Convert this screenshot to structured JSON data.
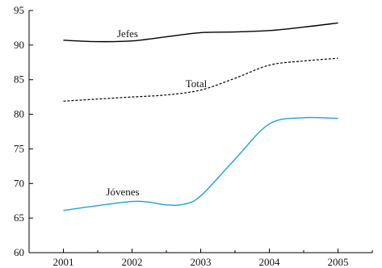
{
  "chart_data": {
    "type": "line",
    "title": "",
    "xlabel": "",
    "ylabel": "",
    "x": [
      2001,
      2002,
      2003,
      2004,
      2005
    ],
    "x_tick_labels": [
      "2001",
      "2002",
      "2003",
      "2004",
      "2005"
    ],
    "ylim": [
      60,
      95
    ],
    "y_ticks": [
      60,
      65,
      70,
      75,
      80,
      85,
      90,
      95
    ],
    "y_tick_labels": [
      "60",
      "65",
      "70",
      "75",
      "80",
      "85",
      "90",
      "95"
    ],
    "grid": false,
    "series": [
      {
        "name": "Jefes",
        "color": "#000000",
        "style": "solid",
        "x": [
          2001,
          2001.5,
          2002,
          2002.5,
          2003,
          2003.5,
          2004,
          2004.5,
          2005
        ],
        "values": [
          90.7,
          90.5,
          90.6,
          91.2,
          91.8,
          91.9,
          92.1,
          92.6,
          93.2
        ]
      },
      {
        "name": "Total",
        "color": "#000000",
        "style": "dashed",
        "x": [
          2001,
          2001.5,
          2002,
          2002.5,
          2003,
          2003.5,
          2004,
          2004.5,
          2005
        ],
        "values": [
          81.9,
          82.2,
          82.5,
          82.8,
          83.5,
          85.2,
          87.1,
          87.7,
          88.1
        ]
      },
      {
        "name": "Jóvenes",
        "color": "#1aa3d9",
        "style": "solid",
        "x": [
          2001,
          2001.5,
          2002,
          2002.25,
          2002.5,
          2002.75,
          2003,
          2003.5,
          2004,
          2004.5,
          2005
        ],
        "values": [
          66.1,
          66.8,
          67.4,
          67.3,
          66.9,
          67.0,
          68.2,
          73.5,
          78.6,
          79.5,
          79.4
        ]
      }
    ]
  }
}
